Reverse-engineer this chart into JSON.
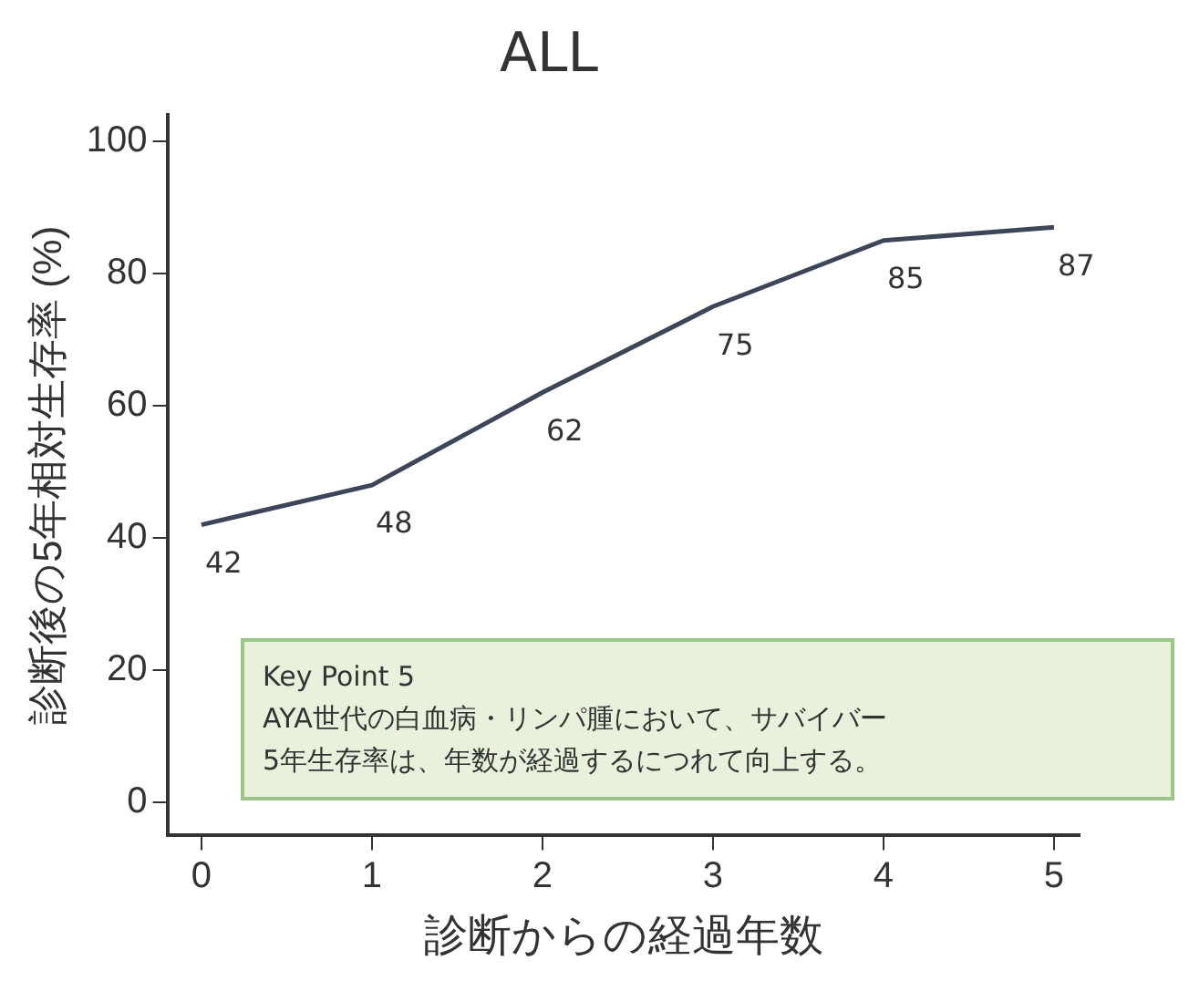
{
  "chart_data": {
    "type": "line",
    "title": "ALL",
    "xlabel": "診断からの経過年数",
    "ylabel": "診断後の5年相対生存率 (%)",
    "x": [
      0,
      1,
      2,
      3,
      4,
      5
    ],
    "series": [
      {
        "color": "#3d4658",
        "values": [
          42,
          48,
          62,
          75,
          85,
          87
        ]
      }
    ],
    "data_labels": true,
    "xlim": [
      -0.2,
      5.15
    ],
    "ylim": [
      -5,
      104
    ],
    "xticks": [
      0,
      1,
      2,
      3,
      4,
      5
    ],
    "yticks": [
      0,
      20,
      40,
      60,
      80,
      100
    ],
    "grid": false,
    "legend": false,
    "marker": "none",
    "line_style": "solid",
    "annotations": [
      "Key Point 5",
      "AYA世代の白血病・リンパ腫において、サバイバー",
      "5年生存率は、年数が経過するにつれて向上する。"
    ]
  }
}
